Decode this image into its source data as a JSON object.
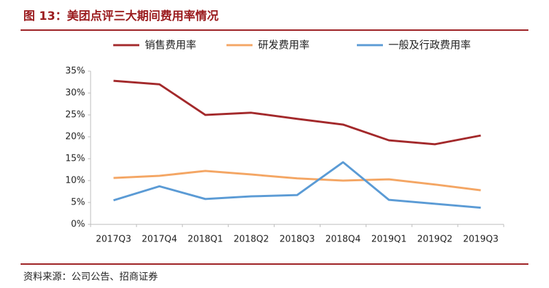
{
  "chart_data": {
    "type": "line",
    "title": "图 13：美团点评三大期间费用率情况",
    "source": "资料来源：公司公告、招商证券",
    "categories": [
      "2017Q3",
      "2017Q4",
      "2018Q1",
      "2018Q2",
      "2018Q3",
      "2018Q4",
      "2019Q1",
      "2019Q2",
      "2019Q3"
    ],
    "series": [
      {
        "name": "销售费用率",
        "color": "#a3292b",
        "values": [
          32.8,
          32.0,
          25.0,
          25.5,
          24.1,
          22.8,
          19.2,
          18.3,
          20.3
        ]
      },
      {
        "name": "研发费用率",
        "color": "#f4a664",
        "values": [
          10.6,
          11.1,
          12.2,
          11.4,
          10.5,
          10.0,
          10.3,
          9.1,
          7.8
        ]
      },
      {
        "name": "一般及行政费用率",
        "color": "#5b9bd5",
        "values": [
          5.5,
          8.7,
          5.8,
          6.4,
          6.7,
          14.2,
          5.6,
          4.7,
          3.8
        ]
      }
    ],
    "ylim": [
      0,
      35
    ],
    "yticks": [
      {
        "value": 0,
        "label": "0%"
      },
      {
        "value": 5,
        "label": "5%"
      },
      {
        "value": 10,
        "label": "10%"
      },
      {
        "value": 15,
        "label": "15%"
      },
      {
        "value": 20,
        "label": "20%"
      },
      {
        "value": 25,
        "label": "25%"
      },
      {
        "value": 30,
        "label": "30%"
      },
      {
        "value": 35,
        "label": "35%"
      }
    ],
    "grid": false
  }
}
